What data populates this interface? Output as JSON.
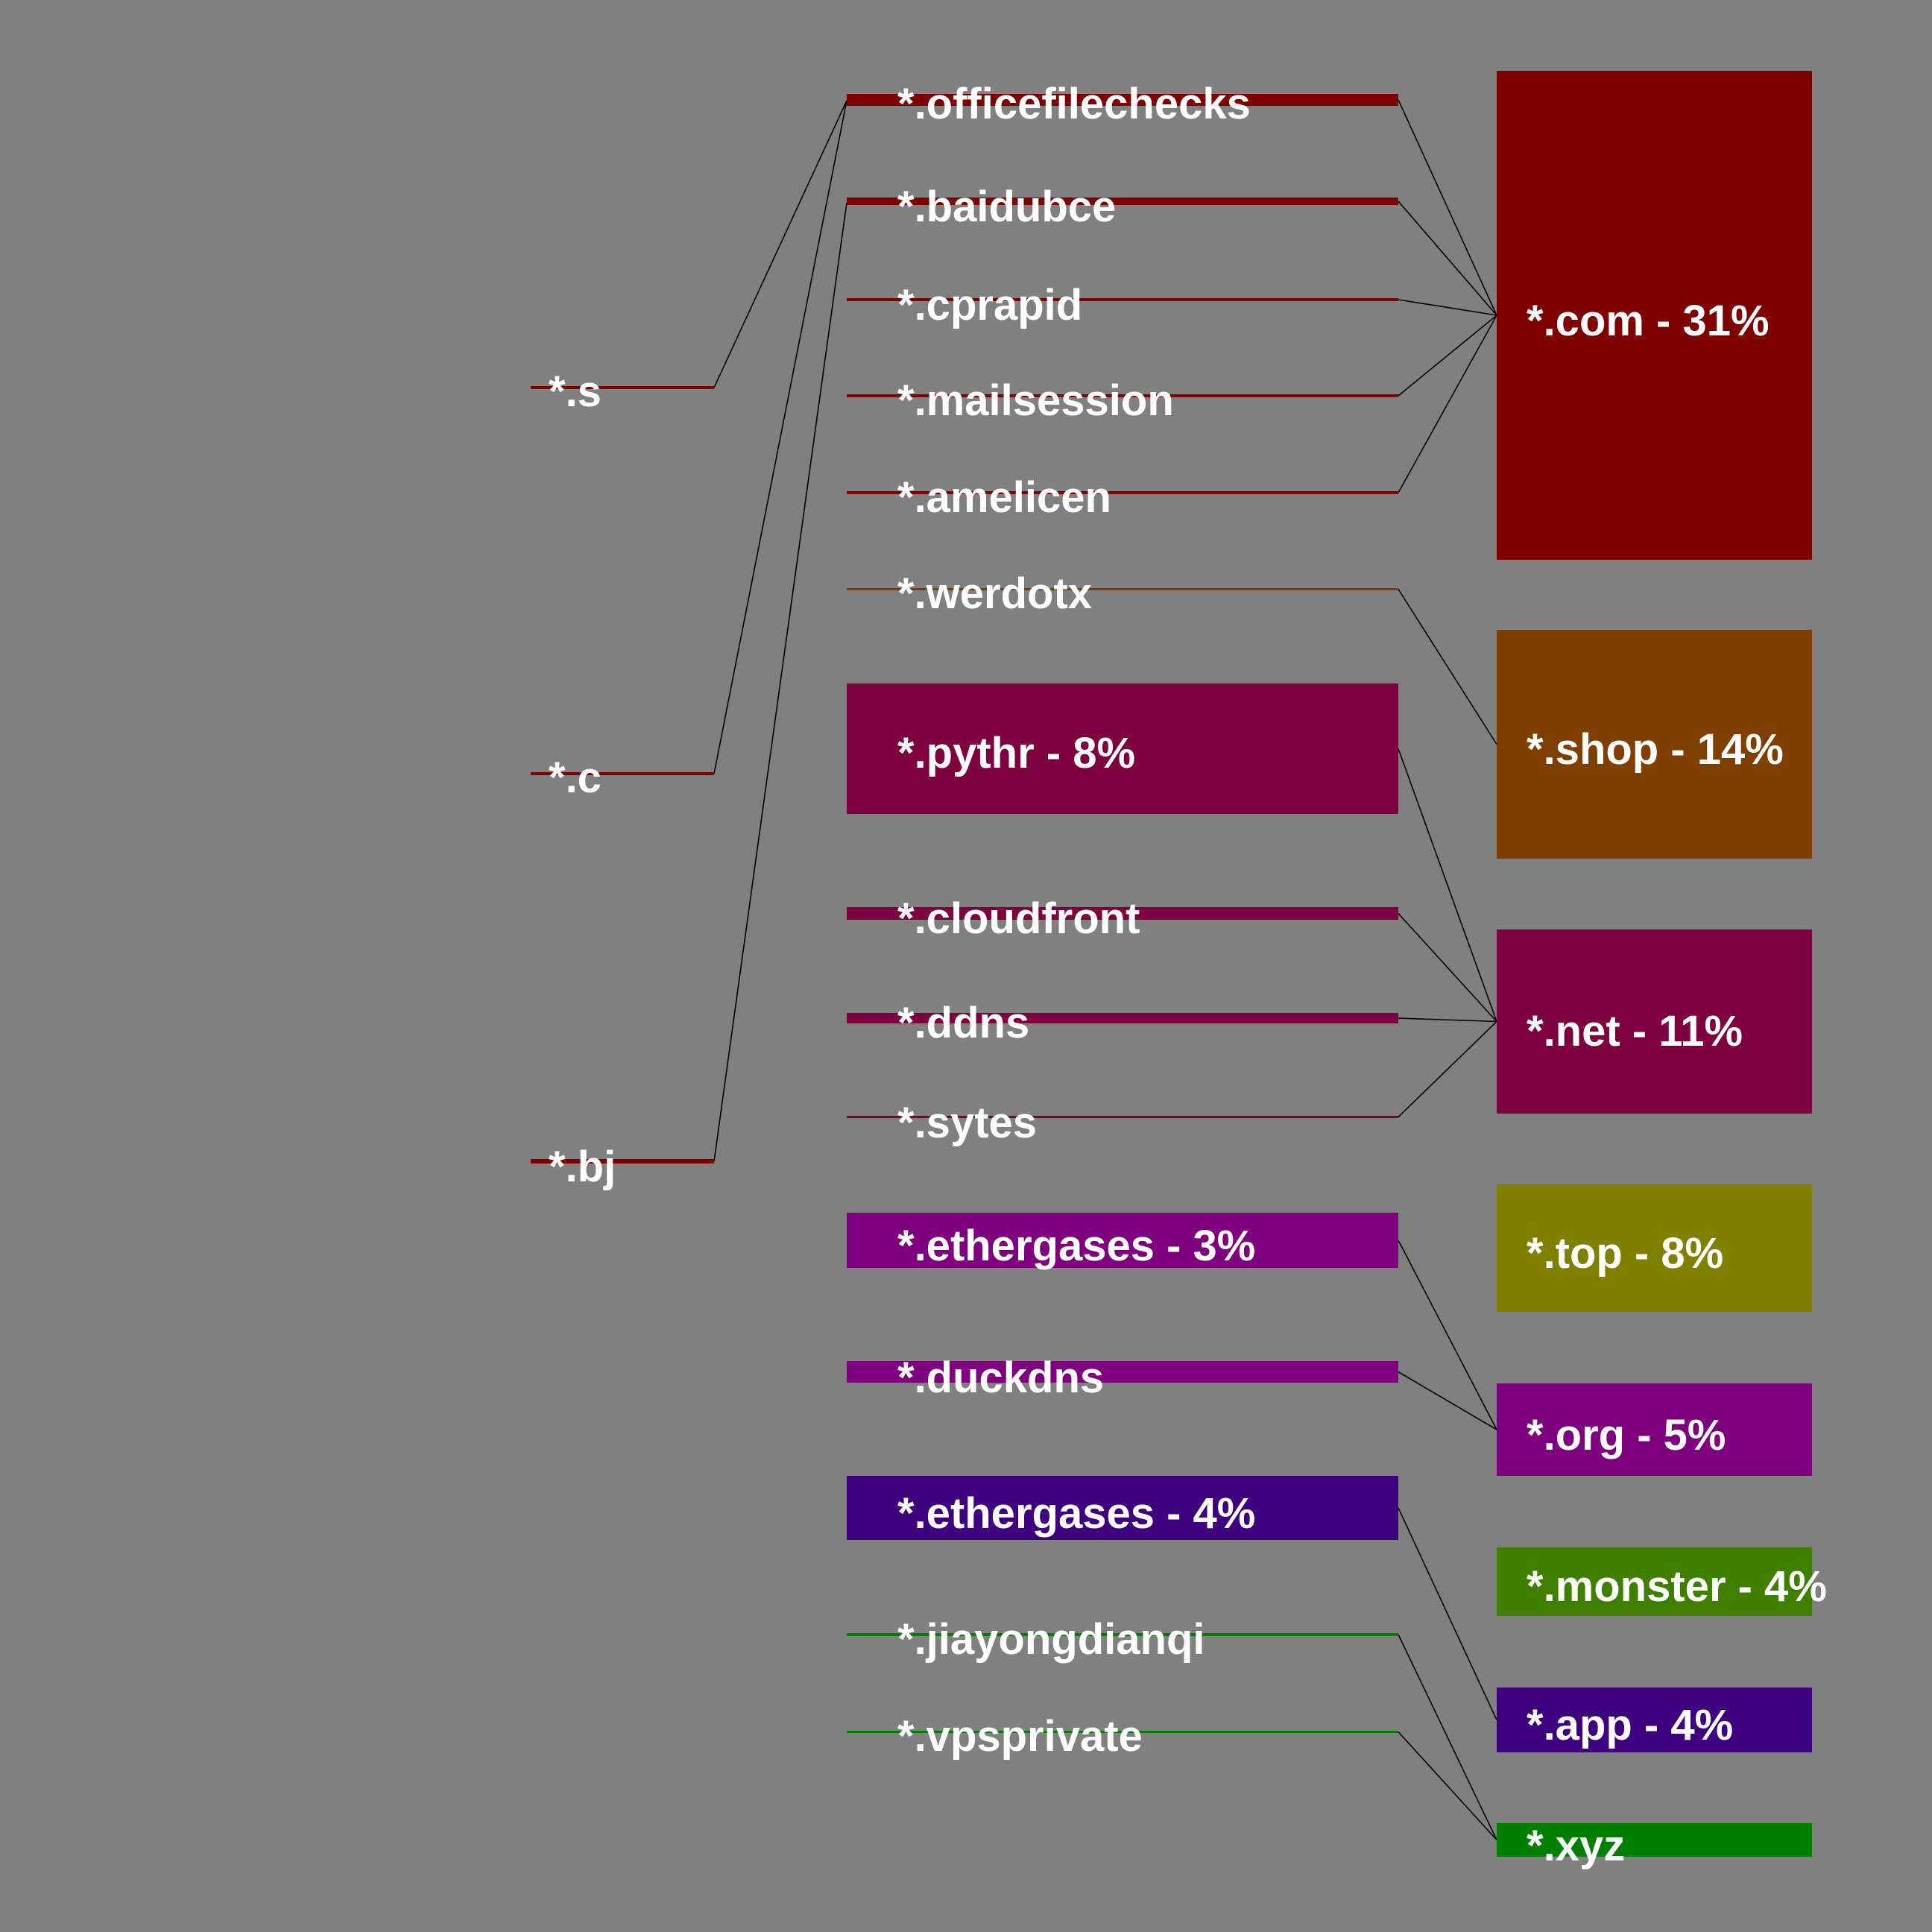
{
  "chart_data": {
    "type": "sankey",
    "level1": [
      {
        "id": "s",
        "label": "*.s",
        "color": "#7f0000"
      },
      {
        "id": "c",
        "label": "*.c",
        "color": "#7f0000"
      },
      {
        "id": "bj",
        "label": "*.bj",
        "color": "#7f0000"
      }
    ],
    "level2": [
      {
        "id": "officefilechecks",
        "label": "*.officefilechecks",
        "color": "#7f0000"
      },
      {
        "id": "baidubce",
        "label": "*.baidubce",
        "color": "#7f0000"
      },
      {
        "id": "cprapid",
        "label": "*.cprapid",
        "color": "#7f0000"
      },
      {
        "id": "mailsession",
        "label": "*.mailsession",
        "color": "#7f0000"
      },
      {
        "id": "amelicen",
        "label": "*.amelicen",
        "color": "#7f0000"
      },
      {
        "id": "werdotx",
        "label": "*.werdotx",
        "color": "#7f3f00"
      },
      {
        "id": "pythr",
        "label": "*.pythr - 8%",
        "color": "#7f003f"
      },
      {
        "id": "cloudfront",
        "label": "*.cloudfront",
        "color": "#7f003f"
      },
      {
        "id": "ddns",
        "label": "*.ddns",
        "color": "#7f003f"
      },
      {
        "id": "sytes",
        "label": "*.sytes",
        "color": "#7f003f"
      },
      {
        "id": "ethergases_org",
        "label": "*.ethergases - 3%",
        "color": "#7f007f"
      },
      {
        "id": "duckdns",
        "label": "*.duckdns",
        "color": "#7f007f"
      },
      {
        "id": "ethergases_app",
        "label": "*.ethergases - 4%",
        "color": "#3f007f"
      },
      {
        "id": "jiayongdianqi",
        "label": "*.jiayongdianqi",
        "color": "#007f00"
      },
      {
        "id": "vpsprivate",
        "label": "*.vpsprivate",
        "color": "#007f00"
      }
    ],
    "level3": [
      {
        "id": "com",
        "label": "*.com - 31%",
        "color": "#7f0000"
      },
      {
        "id": "shop",
        "label": "*.shop - 14%",
        "color": "#7f3f00"
      },
      {
        "id": "net",
        "label": "*.net - 11%",
        "color": "#7f003f"
      },
      {
        "id": "top",
        "label": "*.top - 8%",
        "color": "#7f7f00"
      },
      {
        "id": "org",
        "label": "*.org - 5%",
        "color": "#7f007f"
      },
      {
        "id": "monster",
        "label": "*.monster - 4%",
        "color": "#3f7f00"
      },
      {
        "id": "app",
        "label": "*.app - 4%",
        "color": "#3f007f"
      },
      {
        "id": "xyz",
        "label": "*.xyz",
        "color": "#007f00"
      }
    ],
    "links": [
      {
        "source": "s",
        "target": "officefilechecks"
      },
      {
        "source": "c",
        "target": "officefilechecks"
      },
      {
        "source": "bj",
        "target": "baidubce"
      },
      {
        "source": "officefilechecks",
        "target": "com"
      },
      {
        "source": "baidubce",
        "target": "com"
      },
      {
        "source": "cprapid",
        "target": "com"
      },
      {
        "source": "mailsession",
        "target": "com"
      },
      {
        "source": "amelicen",
        "target": "com"
      },
      {
        "source": "werdotx",
        "target": "shop"
      },
      {
        "source": "pythr",
        "target": "net"
      },
      {
        "source": "cloudfront",
        "target": "net"
      },
      {
        "source": "ddns",
        "target": "net"
      },
      {
        "source": "sytes",
        "target": "net"
      },
      {
        "source": "ethergases_org",
        "target": "org"
      },
      {
        "source": "duckdns",
        "target": "org"
      },
      {
        "source": "ethergases_app",
        "target": "app"
      },
      {
        "source": "jiayongdianqi",
        "target": "xyz"
      },
      {
        "source": "vpsprivate",
        "target": "xyz"
      }
    ]
  }
}
